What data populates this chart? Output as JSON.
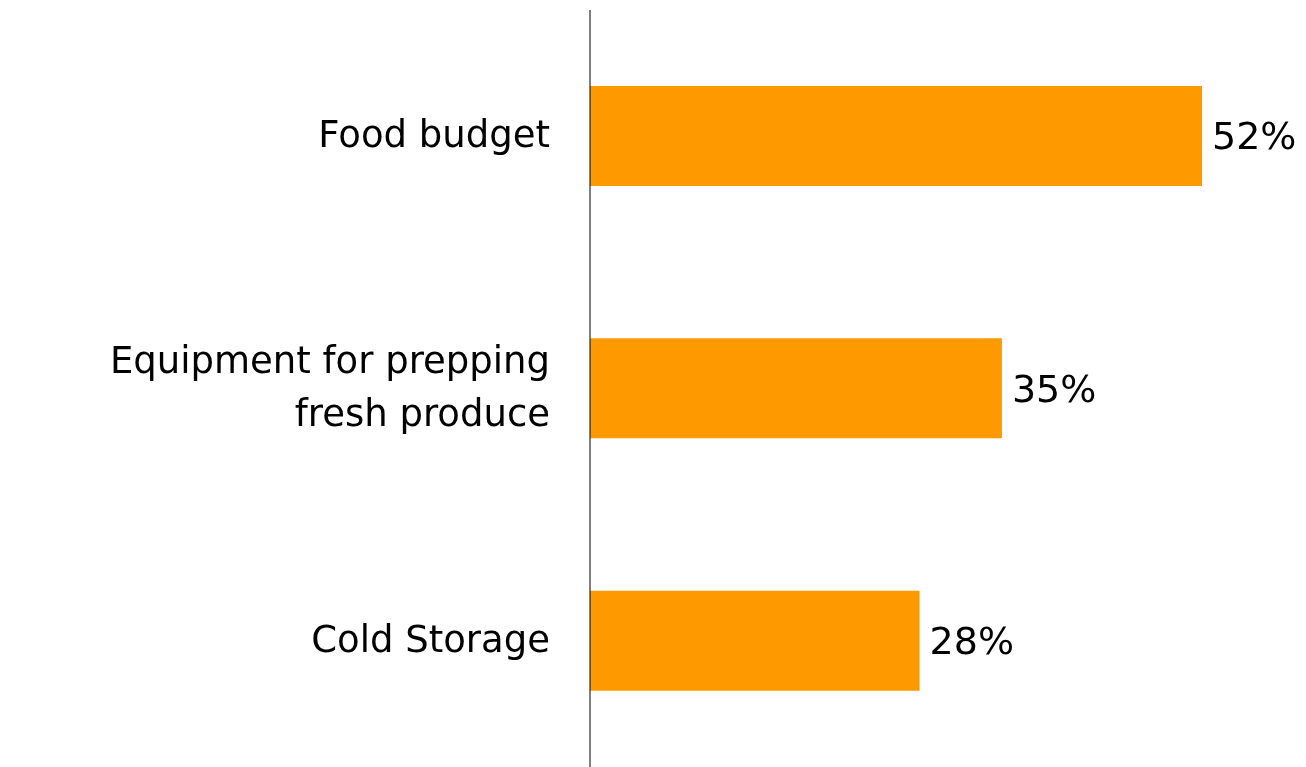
{
  "chart_data": {
    "type": "bar",
    "orientation": "horizontal",
    "categories": [
      "Food budget",
      "Equipment for prepping fresh produce",
      "Cold Storage"
    ],
    "values": [
      52,
      35,
      28
    ],
    "color": "#ff9900",
    "value_labels": [
      "52%",
      "35%",
      "28%"
    ]
  }
}
